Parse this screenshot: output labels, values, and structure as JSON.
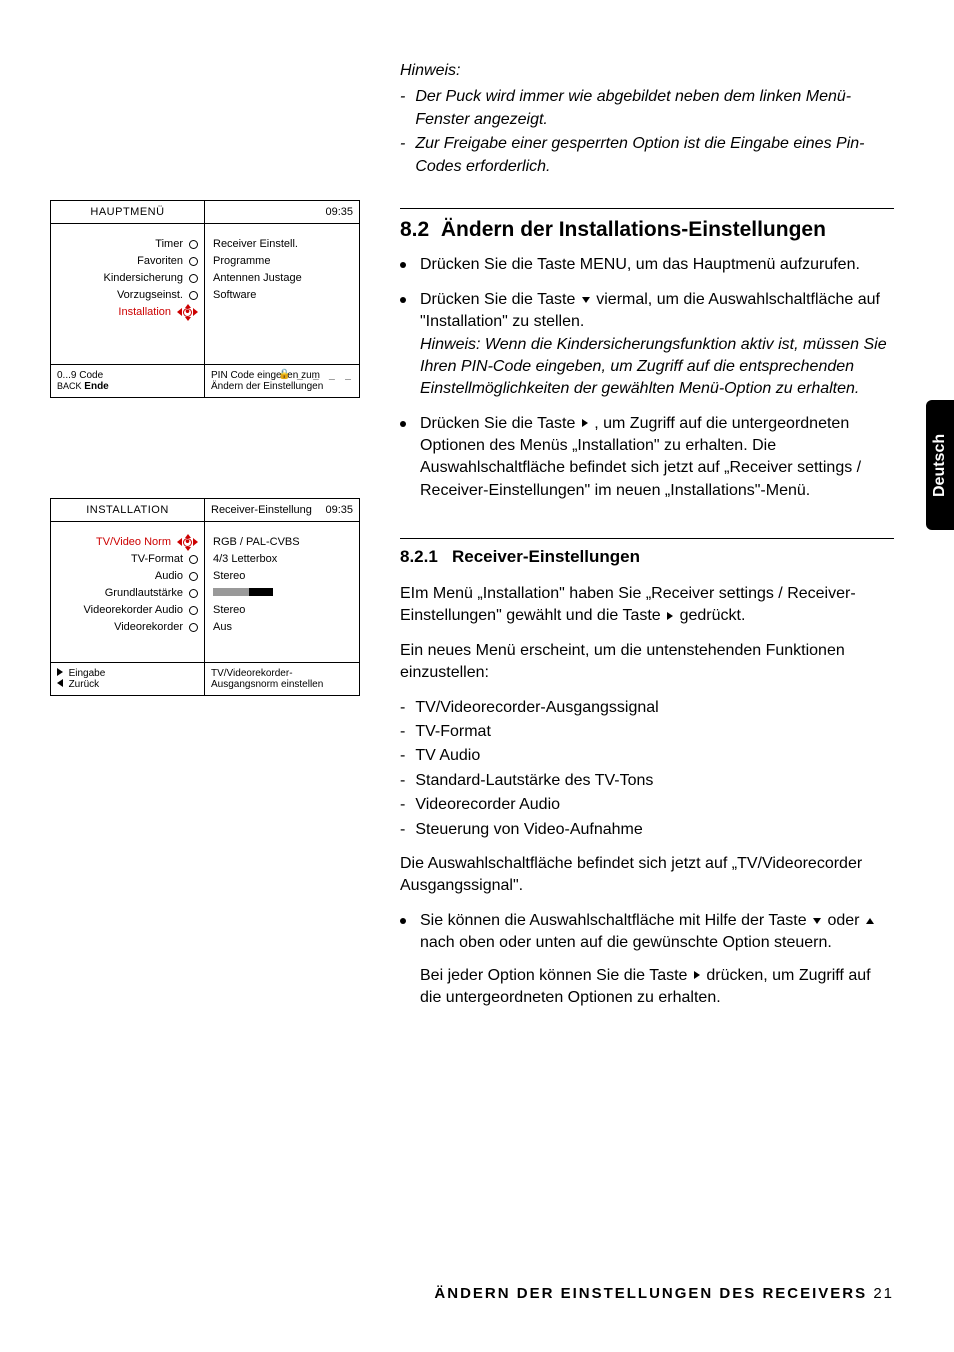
{
  "hint": {
    "label": "Hinweis:",
    "items": [
      "Der Puck wird immer wie abgebildet neben dem linken Menü-Fenster angezeigt.",
      "Zur Freigabe einer gesperrten Option ist die Eingabe eines Pin-Codes erforderlich."
    ]
  },
  "section82": {
    "number": "8.2",
    "title": "Ändern der Installations-Einstellungen",
    "bullets": [
      {
        "text": "Drücken Sie die Taste MENU, um das Hauptmenü aufzurufen."
      },
      {
        "pre": "Drücken Sie die Taste ",
        "arrow": "down",
        "post": " viermal, um die Auswahlschaltfläche auf \"Installation\" zu stellen.",
        "note": "Hinweis: Wenn die Kindersicherungsfunktion aktiv ist, müssen Sie Ihren PIN-Code eingeben, um Zugriff auf die entsprechenden Einstellmöglichkeiten der gewählten Menü-Option zu erhalten."
      },
      {
        "pre": "Drücken Sie die Taste ",
        "arrow": "right",
        "post": " , um Zugriff auf die untergeordneten Optionen des Menüs „Installation\" zu erhalten. Die Auswahlschaltfläche befindet sich jetzt auf „Receiver settings / Receiver-Einstellungen\" im neuen „Installations\"-Menü."
      }
    ]
  },
  "section821": {
    "number": "8.2.1",
    "title": "Receiver-Einstellungen",
    "p1_pre": "EIm Menü „Installation\" haben Sie „Receiver settings / Receiver-Einstellungen\" gewählt und die Taste ",
    "p1_arrow": "right",
    "p1_post": " gedrückt.",
    "p2": "Ein neues Menü erscheint, um die untenstehenden Funktionen einzustellen:",
    "dash_items": [
      "TV/Videorecorder-Ausgangssignal",
      "TV-Format",
      "TV Audio",
      "Standard-Lautstärke des TV-Tons",
      "Videorecorder  Audio",
      "Steuerung von Video-Aufnahme"
    ],
    "p3": "Die Auswahlschaltfläche befindet sich jetzt auf „TV/Videorecorder Ausgangssignal\".",
    "bullet4_pre": "Sie können die Auswahlschaltfläche mit Hilfe der Taste ",
    "bullet4_mid": " oder ",
    "bullet4_post": " nach oben oder unten auf die gewünschte Option steuern.",
    "p4_pre": "Bei jeder Option können Sie die Taste ",
    "p4_post": " drücken, um Zugriff auf die untergeordneten Optionen zu erhalten."
  },
  "side_tab": "Deutsch",
  "footer": {
    "bold": "ÄNDERN DER EINSTELLUNGEN DES RECEIVERS",
    "page": "21"
  },
  "ui1": {
    "title_left": "HAUPTMENÜ",
    "time": "09:35",
    "left_items": [
      {
        "label": "Timer",
        "sel": false
      },
      {
        "label": "Favoriten",
        "sel": false
      },
      {
        "label": "Kindersicherung",
        "sel": false
      },
      {
        "label": "Vorzugseinst.",
        "sel": false
      },
      {
        "label": "Installation",
        "sel": true
      }
    ],
    "right_items": [
      "Receiver Einstell.",
      "Programme",
      "Antennen Justage",
      "Software"
    ],
    "footer_left_l1": "0...9 Code",
    "footer_left_l2": "BACK Ende",
    "footer_right_l1": "PIN Code eingeben zum",
    "footer_right_l2": "Ändern der Einstellungen",
    "lock_mask": "_ _ _ _"
  },
  "ui2": {
    "title_left": "INSTALLATION",
    "title_right": "Receiver-Einstellung",
    "time": "09:35",
    "left_items": [
      {
        "label": "TV/Video Norm",
        "sel": true
      },
      {
        "label": "TV-Format",
        "sel": false
      },
      {
        "label": "Audio",
        "sel": false
      },
      {
        "label": "Grundlautstärke",
        "sel": false
      },
      {
        "label": "Videorekorder Audio",
        "sel": false
      },
      {
        "label": "Videorekorder",
        "sel": false
      }
    ],
    "right_items": [
      "RGB / PAL-CVBS",
      "4/3 Letterbox",
      "Stereo",
      "__VOLBAR__",
      "Stereo",
      "Aus"
    ],
    "footer_left_l1": "Eingabe",
    "footer_left_l2": "Zurück",
    "footer_right": "TV/Videorekorder-Ausgangsnorm einstellen"
  }
}
